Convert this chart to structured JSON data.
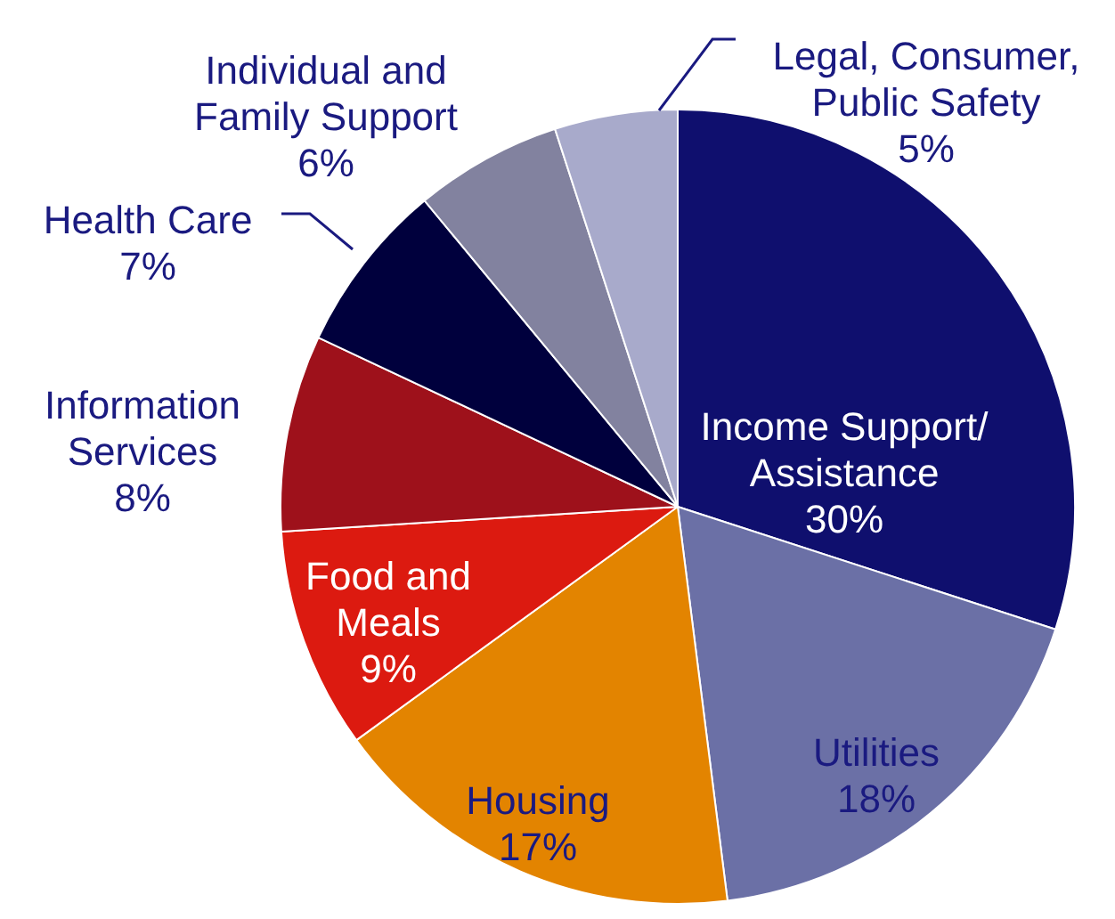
{
  "chart_data": {
    "type": "pie",
    "categories": [
      "Income Support/ Assistance",
      "Utilities",
      "Housing",
      "Food and Meals",
      "Information Services",
      "Health Care",
      "Individual and Family Support",
      "Legal, Consumer, Public Safety"
    ],
    "values": [
      30,
      18,
      17,
      9,
      8,
      7,
      6,
      5
    ],
    "colors": [
      "#0f0f6e",
      "#6b70a6",
      "#e38400",
      "#dc1a10",
      "#9e111b",
      "#00003d",
      "#82829f",
      "#a8aacb"
    ],
    "value_labels": [
      "30%",
      "18%",
      "17%",
      "9%",
      "8%",
      "7%",
      "6%",
      "5%"
    ],
    "legend": false
  }
}
